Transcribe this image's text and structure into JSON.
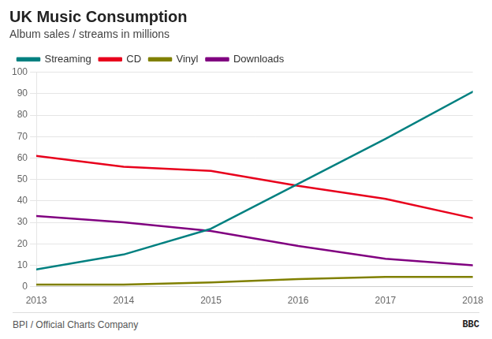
{
  "chart_data": {
    "type": "line",
    "title": "UK Music Consumption",
    "subtitle": "Album sales / streams in millions",
    "x": [
      2013,
      2014,
      2015,
      2016,
      2017,
      2018
    ],
    "series": [
      {
        "name": "Streaming",
        "color": "#008080",
        "values": [
          8,
          15,
          27,
          48,
          69,
          91
        ]
      },
      {
        "name": "CD",
        "color": "#e8001c",
        "values": [
          61,
          56,
          54,
          47,
          41,
          32
        ]
      },
      {
        "name": "Vinyl",
        "color": "#808000",
        "values": [
          1,
          1,
          2,
          3.5,
          4.5,
          4.5
        ]
      },
      {
        "name": "Downloads",
        "color": "#800080",
        "values": [
          33,
          30,
          26,
          19,
          13,
          10
        ]
      }
    ],
    "xlim": [
      2013,
      2018
    ],
    "xticks": [
      2013,
      2014,
      2015,
      2016,
      2017,
      2018
    ],
    "ylim": [
      0,
      100
    ],
    "yticks": [
      0,
      10,
      20,
      30,
      40,
      50,
      60,
      70,
      80,
      90,
      100
    ],
    "grid": true,
    "legend": "upper left",
    "annotations": [
      "BPI / Official Charts Company",
      "BBC"
    ]
  }
}
